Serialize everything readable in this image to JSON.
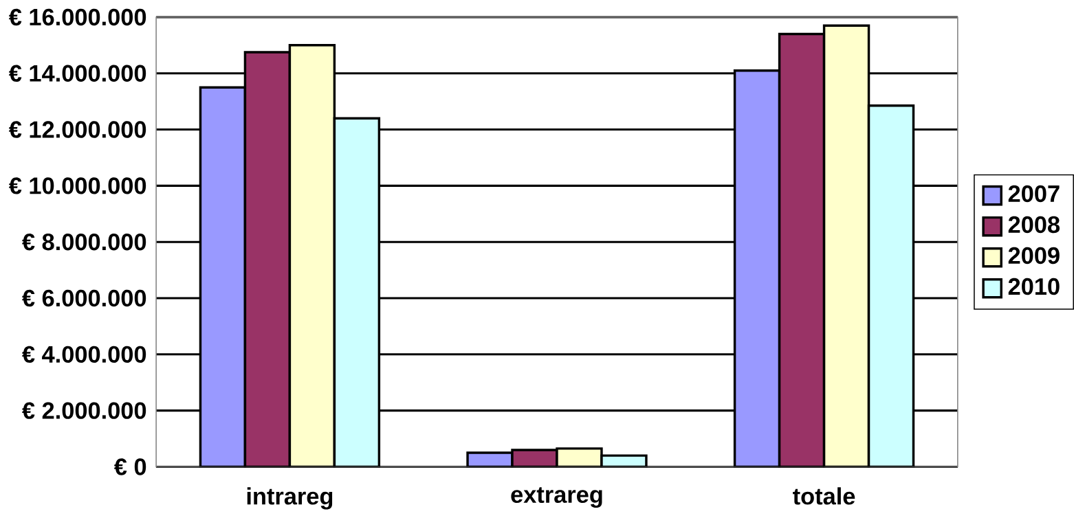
{
  "chart_data": {
    "type": "bar",
    "categories": [
      "intrareg",
      "extrareg",
      "totale"
    ],
    "series": [
      {
        "name": "2007",
        "color": "#9999ff",
        "values": [
          13500000,
          500000,
          14100000
        ]
      },
      {
        "name": "2008",
        "color": "#993366",
        "values": [
          14750000,
          600000,
          15400000
        ]
      },
      {
        "name": "2009",
        "color": "#ffffcc",
        "values": [
          15000000,
          650000,
          15700000
        ]
      },
      {
        "name": "2010",
        "color": "#ccffff",
        "values": [
          12400000,
          400000,
          12850000
        ]
      }
    ],
    "ylim": [
      0,
      16000000
    ],
    "yticks": [
      {
        "value": 0,
        "label": "€ 0"
      },
      {
        "value": 2000000,
        "label": "€ 2.000.000"
      },
      {
        "value": 4000000,
        "label": "€ 4.000.000"
      },
      {
        "value": 6000000,
        "label": "€ 6.000.000"
      },
      {
        "value": 8000000,
        "label": "€ 8.000.000"
      },
      {
        "value": 10000000,
        "label": "€ 10.000.000"
      },
      {
        "value": 12000000,
        "label": "€ 12.000.000"
      },
      {
        "value": 14000000,
        "label": "€ 14.000.000"
      },
      {
        "value": 16000000,
        "label": "€ 16.000.000"
      }
    ],
    "grid": "y",
    "legend": "right"
  }
}
